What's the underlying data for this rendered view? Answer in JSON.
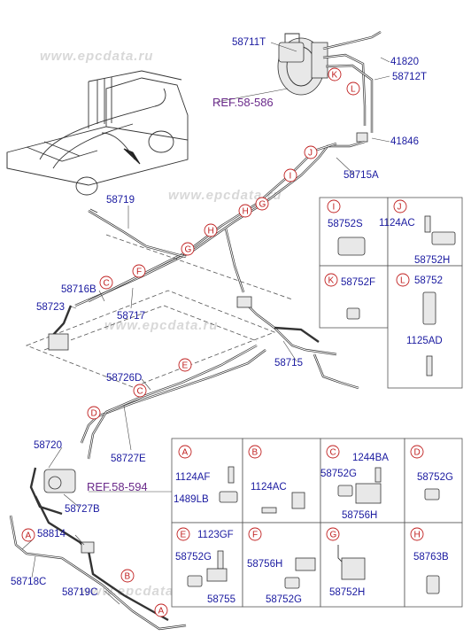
{
  "watermark": "www.epcdata.ru",
  "references": {
    "ref1": "REF.58-586",
    "ref2": "REF.58-594"
  },
  "main_labels": {
    "p58711T": "58711T",
    "p41820": "41820",
    "p58712T": "58712T",
    "p41846": "41846",
    "p58715A": "58715A",
    "p58719a": "58719",
    "p58716B": "58716B",
    "p58723": "58723",
    "p58717": "58717",
    "p58715": "58715",
    "p58726D": "58726D",
    "p58727E": "58727E",
    "p58720": "58720",
    "p58727B": "58727B",
    "p58814": "58814",
    "p58718C": "58718C",
    "p58719C": "58719C"
  },
  "callouts": {
    "K": "K",
    "L": "L",
    "J": "J",
    "I": "I",
    "H": "H",
    "G": "G",
    "F": "F",
    "E": "E",
    "C": "C",
    "D": "D",
    "B": "B",
    "A": "A"
  },
  "detail_boxes": {
    "I": {
      "letter": "I",
      "parts": [
        "58752S"
      ]
    },
    "J": {
      "letter": "J",
      "parts": [
        "1124AC",
        "58752H"
      ]
    },
    "K": {
      "letter": "K",
      "parts": [
        "58752F"
      ]
    },
    "L": {
      "letter": "L",
      "parts": [
        "58752",
        "1125AD"
      ]
    },
    "A": {
      "letter": "A",
      "parts": [
        "1124AF",
        "1489LB"
      ]
    },
    "B": {
      "letter": "B",
      "parts": [
        "1124AC"
      ]
    },
    "C": {
      "letter": "C",
      "parts": [
        "1244BA",
        "58752G",
        "58756H"
      ]
    },
    "D": {
      "letter": "D",
      "parts": [
        "58752G"
      ]
    },
    "E": {
      "letter": "E",
      "parts": [
        "1123GF",
        "58752G",
        "58755"
      ]
    },
    "F": {
      "letter": "F",
      "parts": [
        "58756H",
        "58752G"
      ]
    },
    "G": {
      "letter": "G",
      "parts": [
        "58752H"
      ]
    },
    "H": {
      "letter": "H",
      "parts": [
        "58763B"
      ]
    }
  },
  "colors": {
    "part_number": "#1a1aa0",
    "callout": "#c02020",
    "reference": "#6a2a8a",
    "watermark": "#d8d8d8"
  }
}
